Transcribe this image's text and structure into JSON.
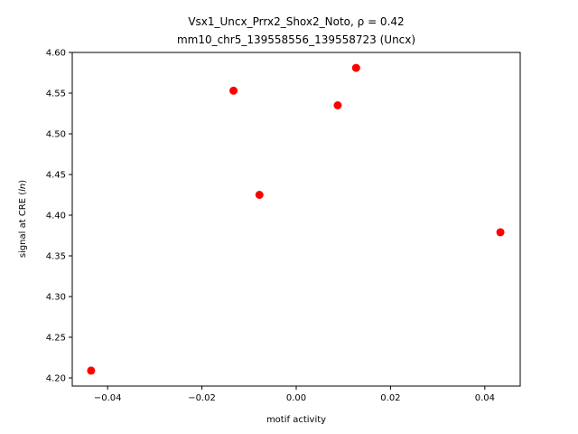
{
  "chart_data": {
    "type": "scatter",
    "title_line1": "Vsx1_Uncx_Prrx2_Shox2_Noto, ρ = 0.42",
    "title_line2": "mm10_chr5_139558556_139558723 (Uncx)",
    "xlabel": "motif activity",
    "ylabel_prefix": "signal at CRE (",
    "ylabel_italic": "ln",
    "ylabel_suffix": ")",
    "xlim": [
      -0.0475,
      0.0475
    ],
    "ylim": [
      4.19,
      4.6
    ],
    "xticks": [
      -0.04,
      -0.02,
      0.0,
      0.02,
      0.04
    ],
    "xtick_labels": [
      "−0.04",
      "−0.02",
      "0.00",
      "0.02",
      "0.04"
    ],
    "yticks": [
      4.2,
      4.25,
      4.3,
      4.35,
      4.4,
      4.45,
      4.5,
      4.55,
      4.6
    ],
    "ytick_labels": [
      "4.20",
      "4.25",
      "4.30",
      "4.35",
      "4.40",
      "4.45",
      "4.50",
      "4.55",
      "4.60"
    ],
    "grid": false,
    "point_color": "#ff0000",
    "points": [
      {
        "x": -0.0435,
        "y": 4.209
      },
      {
        "x": -0.0133,
        "y": 4.553
      },
      {
        "x": -0.0078,
        "y": 4.425
      },
      {
        "x": 0.0088,
        "y": 4.535
      },
      {
        "x": 0.0127,
        "y": 4.581
      },
      {
        "x": 0.0433,
        "y": 4.379
      }
    ]
  }
}
